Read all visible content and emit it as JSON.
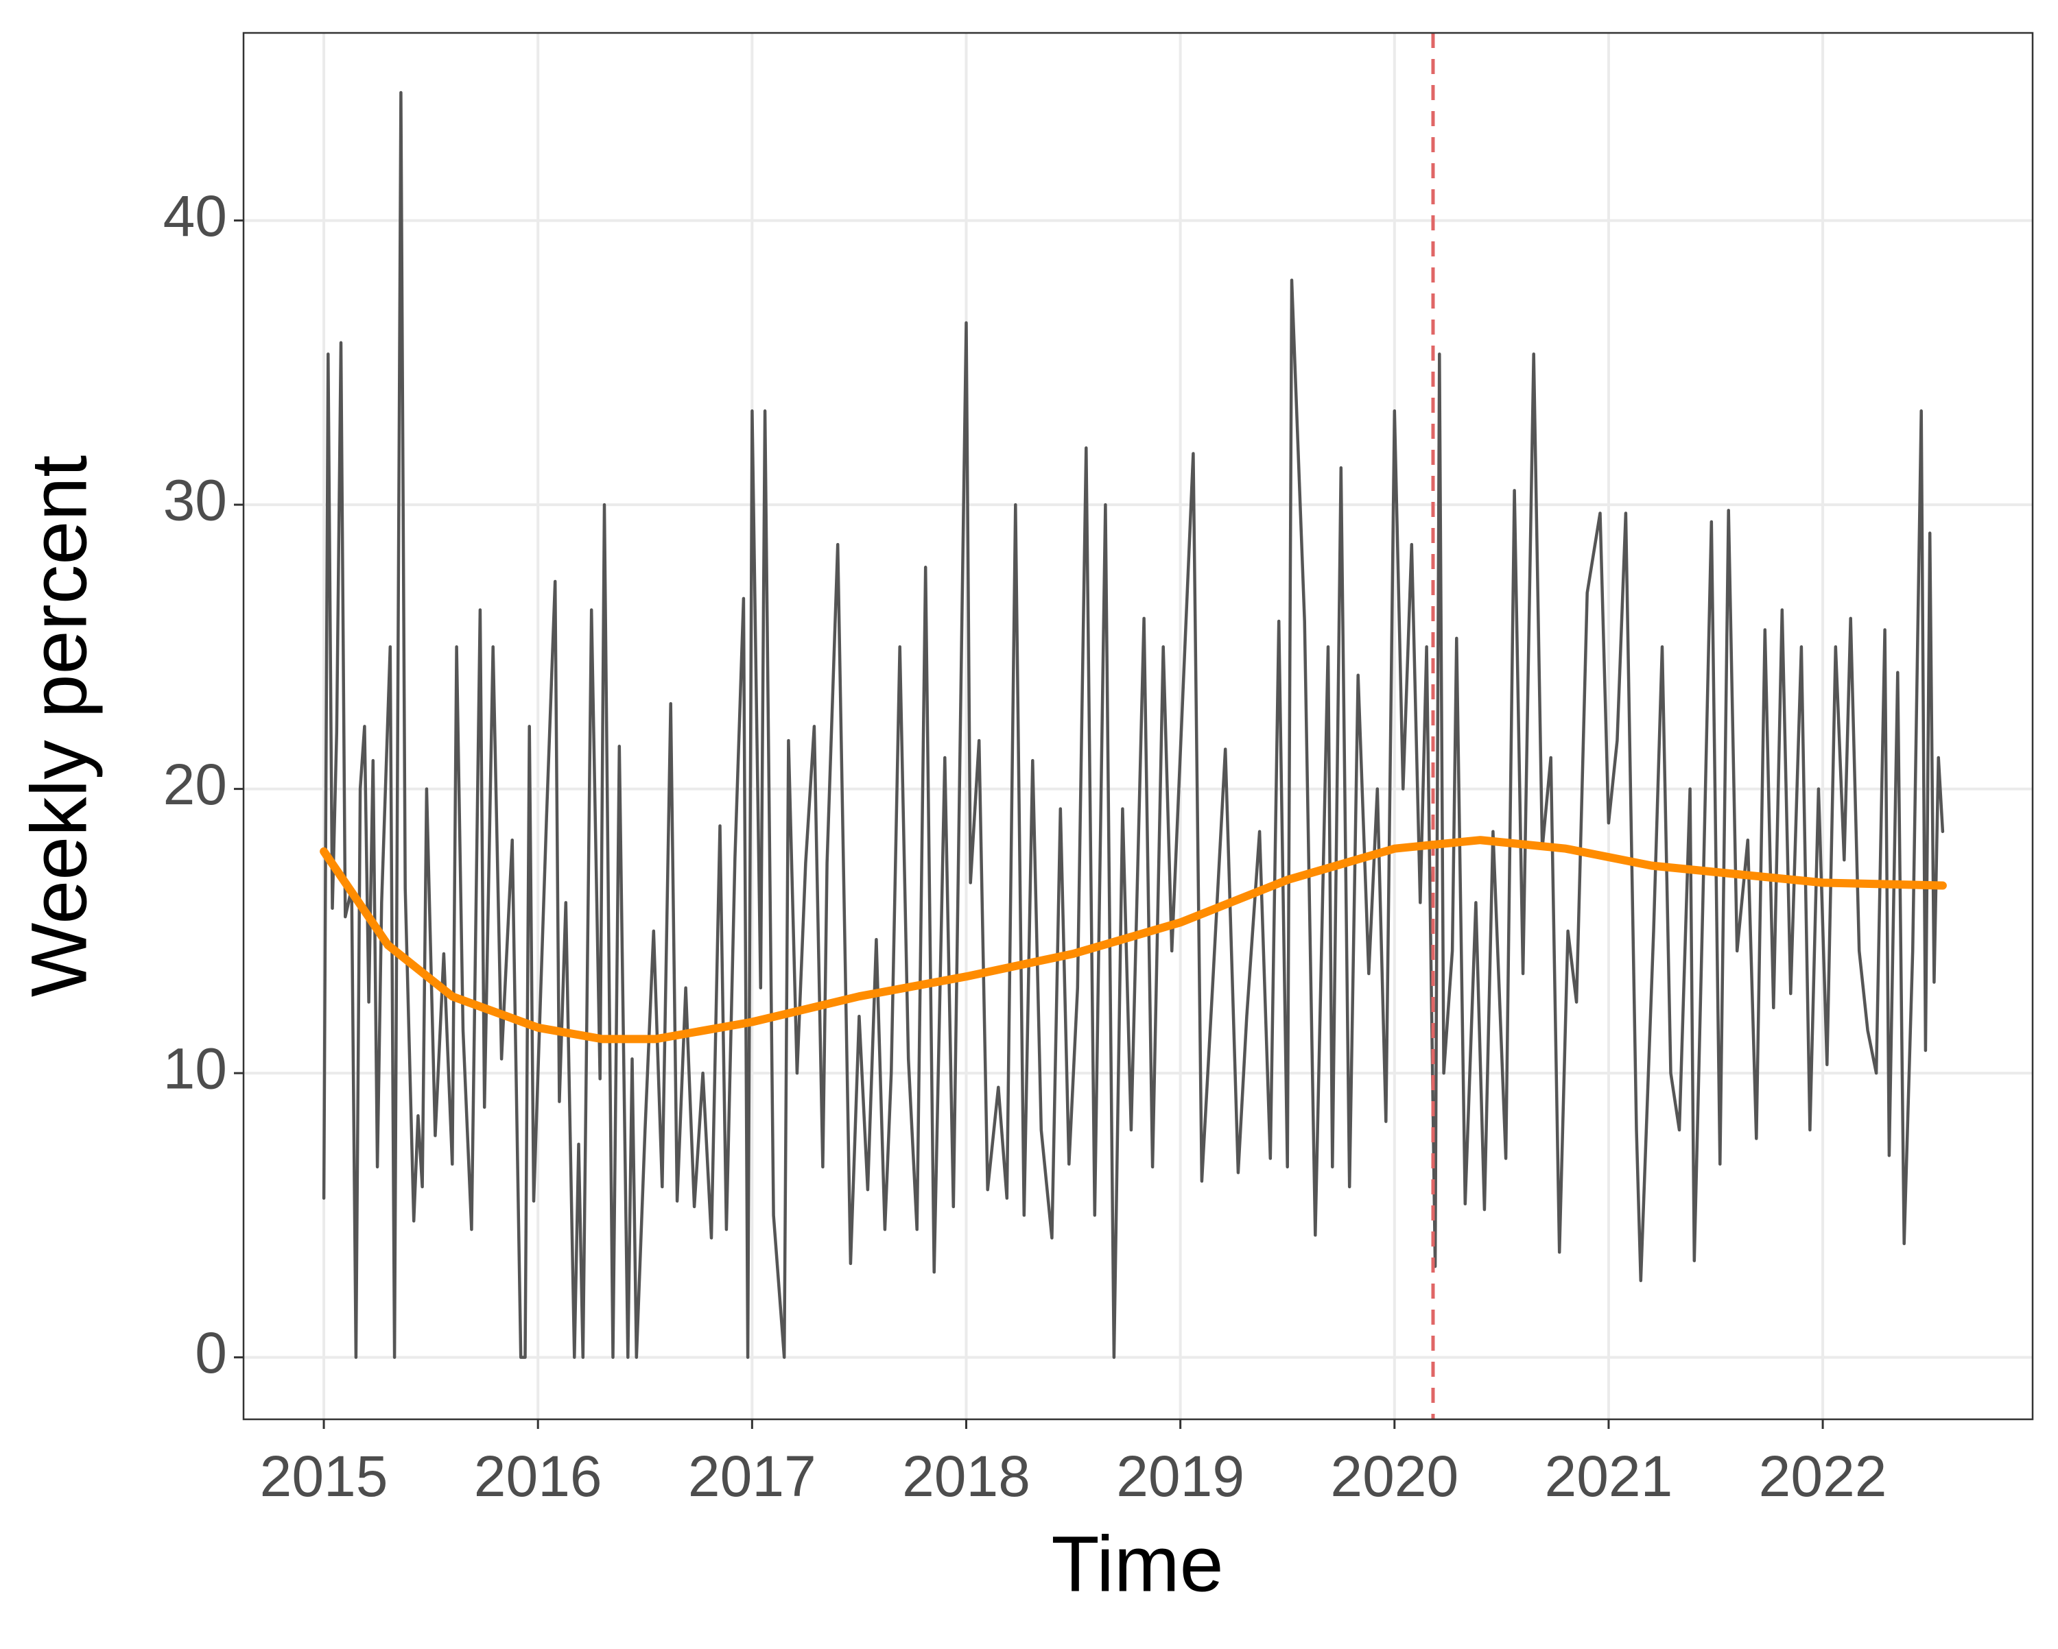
{
  "chart_data": {
    "type": "line",
    "x_label": "Time",
    "y_label": "Weekly percent",
    "xlim": [
      2014.625,
      2022.98
    ],
    "ylim": [
      -2.18,
      46.6
    ],
    "xticks": [
      2015,
      2016,
      2017,
      2018,
      2019,
      2020,
      2021,
      2022
    ],
    "yticks": [
      0,
      10,
      20,
      30,
      40
    ],
    "grid": true,
    "reference_line": {
      "x": 2020.18,
      "color": "#e06666"
    },
    "series": [
      {
        "color": "#555555",
        "x": [
          2015.0,
          2015.02,
          2015.04,
          2015.06,
          2015.08,
          2015.1,
          2015.13,
          2015.15,
          2015.17,
          2015.19,
          2015.21,
          2015.23,
          2015.25,
          2015.27,
          2015.31,
          2015.33,
          2015.36,
          2015.38,
          2015.42,
          2015.44,
          2015.46,
          2015.48,
          2015.52,
          2015.56,
          2015.6,
          2015.62,
          2015.65,
          2015.69,
          2015.73,
          2015.75,
          2015.79,
          2015.83,
          2015.88,
          2015.92,
          2015.94,
          2015.96,
          2015.98,
          2016.04,
          2016.08,
          2016.1,
          2016.13,
          2016.17,
          2016.19,
          2016.21,
          2016.25,
          2016.29,
          2016.31,
          2016.35,
          2016.38,
          2016.42,
          2016.44,
          2016.46,
          2016.5,
          2016.54,
          2016.58,
          2016.62,
          2016.65,
          2016.69,
          2016.73,
          2016.77,
          2016.81,
          2016.85,
          2016.88,
          2016.92,
          2016.96,
          2016.98,
          2017.0,
          2017.04,
          2017.06,
          2017.1,
          2017.15,
          2017.17,
          2017.21,
          2017.25,
          2017.29,
          2017.33,
          2017.35,
          2017.4,
          2017.46,
          2017.5,
          2017.54,
          2017.58,
          2017.62,
          2017.65,
          2017.69,
          2017.73,
          2017.77,
          2017.81,
          2017.85,
          2017.9,
          2017.94,
          2018.0,
          2018.02,
          2018.06,
          2018.1,
          2018.15,
          2018.19,
          2018.23,
          2018.27,
          2018.31,
          2018.35,
          2018.4,
          2018.44,
          2018.48,
          2018.52,
          2018.56,
          2018.6,
          2018.65,
          2018.69,
          2018.73,
          2018.77,
          2018.83,
          2018.87,
          2018.92,
          2018.96,
          2019.06,
          2019.1,
          2019.15,
          2019.21,
          2019.27,
          2019.31,
          2019.37,
          2019.42,
          2019.46,
          2019.5,
          2019.52,
          2019.58,
          2019.63,
          2019.69,
          2019.71,
          2019.75,
          2019.79,
          2019.83,
          2019.88,
          2019.92,
          2019.96,
          2020.0,
          2020.04,
          2020.08,
          2020.12,
          2020.15,
          2020.19,
          2020.21,
          2020.23,
          2020.27,
          2020.29,
          2020.33,
          2020.38,
          2020.42,
          2020.46,
          2020.52,
          2020.56,
          2020.6,
          2020.65,
          2020.69,
          2020.73,
          2020.77,
          2020.81,
          2020.85,
          2020.9,
          2020.96,
          2021.0,
          2021.04,
          2021.08,
          2021.13,
          2021.15,
          2021.21,
          2021.25,
          2021.29,
          2021.33,
          2021.38,
          2021.4,
          2021.44,
          2021.48,
          2021.52,
          2021.56,
          2021.6,
          2021.65,
          2021.69,
          2021.73,
          2021.77,
          2021.81,
          2021.85,
          2021.9,
          2021.94,
          2021.98,
          2022.02,
          2022.06,
          2022.1,
          2022.13,
          2022.17,
          2022.21,
          2022.25,
          2022.29,
          2022.31,
          2022.35,
          2022.38,
          2022.42,
          2022.46,
          2022.48,
          2022.5,
          2022.52,
          2022.54,
          2022.56
        ],
        "values": [
          5.6,
          35.3,
          15.8,
          22,
          35.7,
          15.5,
          16.5,
          0,
          20,
          22.2,
          12.5,
          21,
          6.7,
          16,
          25,
          0,
          44.5,
          16.5,
          4.8,
          8.5,
          6,
          20,
          7.8,
          14.2,
          6.8,
          25,
          11.5,
          4.5,
          26.3,
          8.8,
          25,
          10.5,
          18.2,
          0,
          0,
          22.2,
          5.5,
          19,
          27.3,
          9,
          16,
          0,
          7.5,
          0,
          26.3,
          9.8,
          30,
          0,
          21.5,
          0,
          10.5,
          0,
          8,
          15,
          6,
          23,
          5.5,
          13,
          5.3,
          10,
          4.2,
          18.7,
          4.5,
          17.6,
          26.7,
          0,
          33.3,
          13,
          33.3,
          5,
          0,
          21.7,
          10,
          17.4,
          22.2,
          6.7,
          17.4,
          28.6,
          3.3,
          12,
          5.9,
          14.7,
          4.5,
          10,
          25,
          10.5,
          4.5,
          27.8,
          3,
          21.1,
          5.3,
          36.4,
          16.7,
          21.7,
          5.9,
          9.5,
          5.6,
          30,
          5,
          21,
          8,
          4.2,
          19.3,
          6.8,
          13,
          32,
          5,
          30,
          0,
          19.3,
          8,
          26,
          6.7,
          25,
          14.3,
          31.8,
          6.2,
          13,
          21.4,
          6.5,
          12,
          18.5,
          7,
          25.9,
          6.7,
          37.9,
          25.9,
          4.3,
          25,
          6.7,
          31.3,
          6,
          24,
          13.5,
          20,
          8.3,
          33.3,
          20,
          28.6,
          16,
          25,
          3.2,
          35.3,
          10,
          14.3,
          25.3,
          5.4,
          16,
          5.2,
          18.5,
          7,
          30.5,
          13.5,
          35.3,
          17.9,
          21.1,
          3.7,
          15,
          12.5,
          26.9,
          29.7,
          18.8,
          21.7,
          29.7,
          8,
          2.7,
          15,
          25,
          10,
          8,
          20,
          3.4,
          16,
          29.4,
          6.8,
          29.8,
          14.3,
          18.2,
          7.7,
          25.6,
          12.3,
          26.3,
          12.8,
          25,
          8,
          20,
          10.3,
          25,
          17.5,
          26,
          14.3,
          11.5,
          10,
          25.6,
          7.1,
          24.1,
          4,
          14.3,
          33.3,
          10.8,
          29,
          13.2,
          21.1,
          18.5
        ]
      },
      {
        "color": "#ff8c00",
        "x": [
          2015.0,
          2015.3,
          2015.6,
          2016.0,
          2016.3,
          2016.55,
          2017.0,
          2017.5,
          2018.0,
          2018.5,
          2019.0,
          2019.5,
          2020.0,
          2020.4,
          2020.8,
          2021.2,
          2021.6,
          2022.0,
          2022.56
        ],
        "values": [
          17.8,
          14.5,
          12.7,
          11.6,
          11.2,
          11.2,
          11.8,
          12.7,
          13.4,
          14.2,
          15.3,
          16.8,
          17.9,
          18.2,
          17.9,
          17.3,
          17.0,
          16.7,
          16.6
        ]
      }
    ]
  }
}
